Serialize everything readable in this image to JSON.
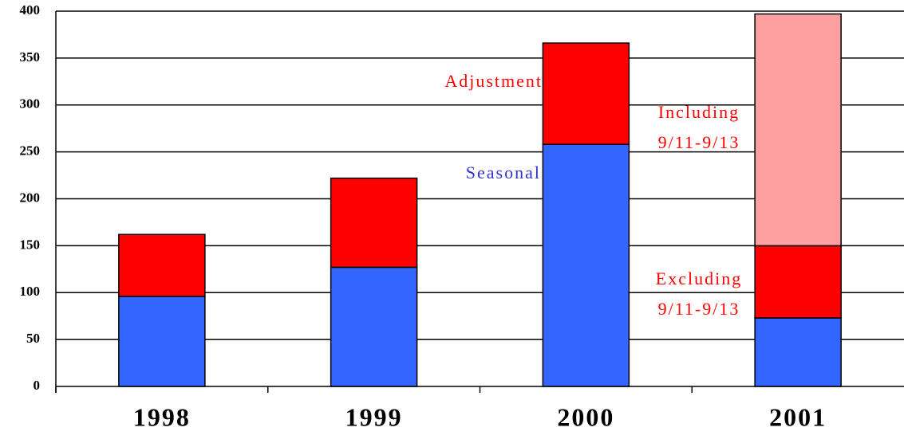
{
  "chart_data": {
    "type": "stacked_bar",
    "categories": [
      "1998",
      "1999",
      "2000",
      "2001"
    ],
    "series": [
      {
        "name": "Seasonal",
        "color": "#3366ff",
        "label_color": "#3333cc",
        "values": [
          96,
          127,
          258,
          73
        ]
      },
      {
        "name": "Adjustment",
        "color": "#ff0000",
        "label_color": "#ff0000",
        "values": [
          66,
          95,
          108,
          77
        ]
      },
      {
        "color": "#ffa0a0",
        "values": [
          null,
          null,
          null,
          247
        ]
      }
    ],
    "annotations": [
      {
        "lines": [
          "Including",
          "9/11-9/13"
        ],
        "color": "#ff0000"
      },
      {
        "lines": [
          "Excluding",
          "9/11-9/13"
        ],
        "color": "#ff0000"
      }
    ],
    "ylim": [
      0,
      400
    ],
    "yticks": [
      0,
      50,
      100,
      150,
      200,
      250,
      300,
      350,
      400
    ],
    "grid": true
  }
}
